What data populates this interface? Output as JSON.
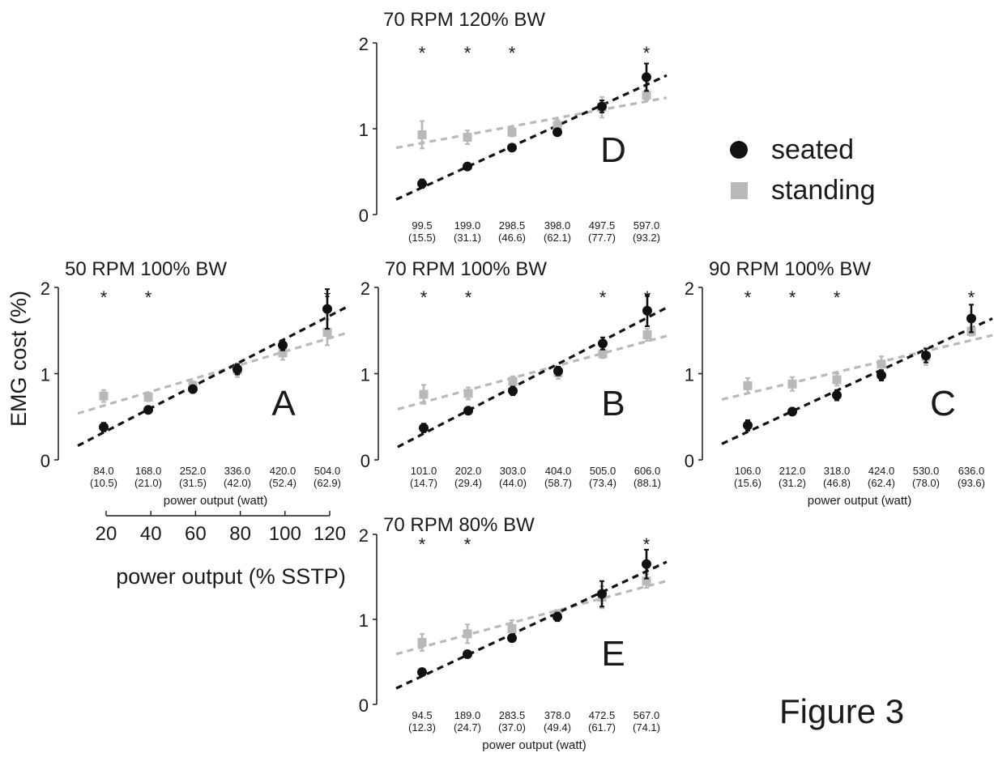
{
  "figure_label": "Figure 3",
  "shared_ylabel": "EMG cost (%)",
  "colors": {
    "seated": "#111111",
    "standing": "#b9b9b9",
    "axis": "#1a1a1a"
  },
  "legend": {
    "seated": "seated",
    "standing": "standing"
  },
  "sstp_axis": {
    "label": "power output (% SSTP)",
    "ticks": [
      "20",
      "40",
      "60",
      "80",
      "100",
      "120"
    ]
  },
  "chart_data": [
    {
      "id": "D",
      "type": "scatter",
      "title": "70 RPM 120% BW",
      "panel_letter": "D",
      "xlabel": "",
      "x_ticks": [
        "99.5",
        "199.0",
        "298.5",
        "398.0",
        "497.5",
        "597.0"
      ],
      "x_ticks_sub": [
        "(15.5)",
        "(31.1)",
        "(46.6)",
        "(62.1)",
        "(77.7)",
        "(93.2)"
      ],
      "y_ticks": [
        "0",
        "1",
        "2"
      ],
      "ylim": [
        0,
        2
      ],
      "significant": [
        true,
        true,
        true,
        false,
        false,
        true
      ],
      "series": [
        {
          "name": "seated",
          "values": [
            0.36,
            0.56,
            0.78,
            0.96,
            1.26,
            1.6
          ],
          "errors": [
            0.05,
            0.03,
            0.04,
            0.04,
            0.07,
            0.16
          ]
        },
        {
          "name": "standing",
          "values": [
            0.93,
            0.9,
            0.96,
            1.04,
            1.25,
            1.39
          ],
          "errors": [
            0.16,
            0.08,
            0.05,
            0.06,
            0.12,
            0.06
          ]
        }
      ]
    },
    {
      "id": "A",
      "type": "scatter",
      "title": "50 RPM 100% BW",
      "panel_letter": "A",
      "xlabel": "power output (watt)",
      "x_ticks": [
        "84.0",
        "168.0",
        "252.0",
        "336.0",
        "420.0",
        "504.0"
      ],
      "x_ticks_sub": [
        "(10.5)",
        "(21.0)",
        "(31.5)",
        "(42.0)",
        "(52.4)",
        "(62.9)"
      ],
      "y_ticks": [
        "0",
        "1",
        "2"
      ],
      "ylim": [
        0,
        2
      ],
      "significant": [
        true,
        true,
        false,
        false,
        false,
        true
      ],
      "series": [
        {
          "name": "seated",
          "values": [
            0.38,
            0.58,
            0.82,
            1.05,
            1.33,
            1.75
          ],
          "errors": [
            0.05,
            0.03,
            0.04,
            0.06,
            0.06,
            0.23
          ]
        },
        {
          "name": "standing",
          "values": [
            0.74,
            0.73,
            0.86,
            1.04,
            1.24,
            1.48
          ],
          "errors": [
            0.07,
            0.05,
            0.05,
            0.08,
            0.08,
            0.15
          ]
        }
      ]
    },
    {
      "id": "B",
      "type": "scatter",
      "title": "70 RPM 100% BW",
      "panel_letter": "B",
      "xlabel": "",
      "x_ticks": [
        "101.0",
        "202.0",
        "303.0",
        "404.0",
        "505.0",
        "606.0"
      ],
      "x_ticks_sub": [
        "(14.7)",
        "(29.4)",
        "(44.0)",
        "(58.7)",
        "(73.4)",
        "(88.1)"
      ],
      "y_ticks": [
        "0",
        "1",
        "2"
      ],
      "ylim": [
        0,
        2
      ],
      "significant": [
        true,
        true,
        false,
        false,
        true,
        true
      ],
      "series": [
        {
          "name": "seated",
          "values": [
            0.37,
            0.57,
            0.8,
            1.03,
            1.35,
            1.73
          ],
          "errors": [
            0.05,
            0.03,
            0.05,
            0.05,
            0.07,
            0.18
          ]
        },
        {
          "name": "standing",
          "values": [
            0.76,
            0.77,
            0.91,
            1.01,
            1.23,
            1.45
          ],
          "errors": [
            0.11,
            0.07,
            0.06,
            0.07,
            0.05,
            0.07
          ]
        }
      ]
    },
    {
      "id": "C",
      "type": "scatter",
      "title": "90 RPM 100% BW",
      "panel_letter": "C",
      "xlabel": "power output (watt)",
      "x_ticks": [
        "106.0",
        "212.0",
        "318.0",
        "424.0",
        "530.0",
        "636.0"
      ],
      "x_ticks_sub": [
        "(15.6)",
        "(31.2)",
        "(46.8)",
        "(62.4)",
        "(78.0)",
        "(93.6)"
      ],
      "y_ticks": [
        "0",
        "1",
        "2"
      ],
      "ylim": [
        0,
        2
      ],
      "significant": [
        true,
        true,
        true,
        false,
        false,
        true
      ],
      "series": [
        {
          "name": "seated",
          "values": [
            0.4,
            0.56,
            0.75,
            0.98,
            1.21,
            1.64
          ],
          "errors": [
            0.06,
            0.03,
            0.06,
            0.06,
            0.08,
            0.16
          ]
        },
        {
          "name": "standing",
          "values": [
            0.86,
            0.88,
            0.93,
            1.11,
            1.2,
            1.49
          ],
          "errors": [
            0.09,
            0.08,
            0.07,
            0.09,
            0.1,
            0.05
          ]
        }
      ]
    },
    {
      "id": "E",
      "type": "scatter",
      "title": "70 RPM 80% BW",
      "panel_letter": "E",
      "xlabel": "power output (watt)",
      "x_ticks": [
        "94.5",
        "189.0",
        "283.5",
        "378.0",
        "472.5",
        "567.0"
      ],
      "x_ticks_sub": [
        "(12.3)",
        "(24.7)",
        "(37.0)",
        "(49.4)",
        "(61.7)",
        "(74.1)"
      ],
      "y_ticks": [
        "0",
        "1",
        "2"
      ],
      "ylim": [
        0,
        2
      ],
      "significant": [
        true,
        true,
        false,
        false,
        false,
        true
      ],
      "series": [
        {
          "name": "seated",
          "values": [
            0.38,
            0.59,
            0.78,
            1.03,
            1.3,
            1.65
          ],
          "errors": [
            0.04,
            0.04,
            0.04,
            0.05,
            0.15,
            0.17
          ]
        },
        {
          "name": "standing",
          "values": [
            0.73,
            0.83,
            0.89,
            1.05,
            1.26,
            1.45
          ],
          "errors": [
            0.1,
            0.11,
            0.1,
            0.06,
            0.13,
            0.08
          ]
        }
      ]
    }
  ]
}
